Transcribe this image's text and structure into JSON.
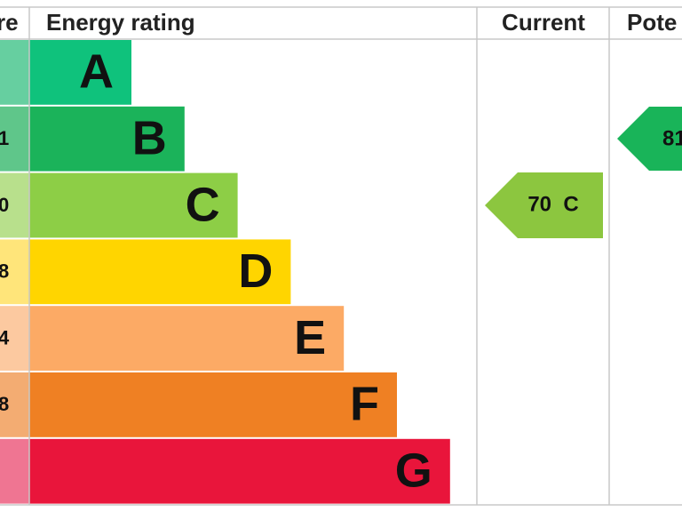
{
  "header": {
    "score": "re",
    "rating": "Energy rating",
    "current": "Current",
    "potential": "Pote"
  },
  "rows": [
    {
      "band": "A",
      "score": null
    },
    {
      "band": "B",
      "score": "1"
    },
    {
      "band": "C",
      "score": "0"
    },
    {
      "band": "D",
      "score": "8"
    },
    {
      "band": "E",
      "score": "4"
    },
    {
      "band": "F",
      "score": "8"
    },
    {
      "band": "G",
      "score": null
    }
  ],
  "current": {
    "label": "70  C"
  },
  "potential": {
    "label": "81"
  }
}
